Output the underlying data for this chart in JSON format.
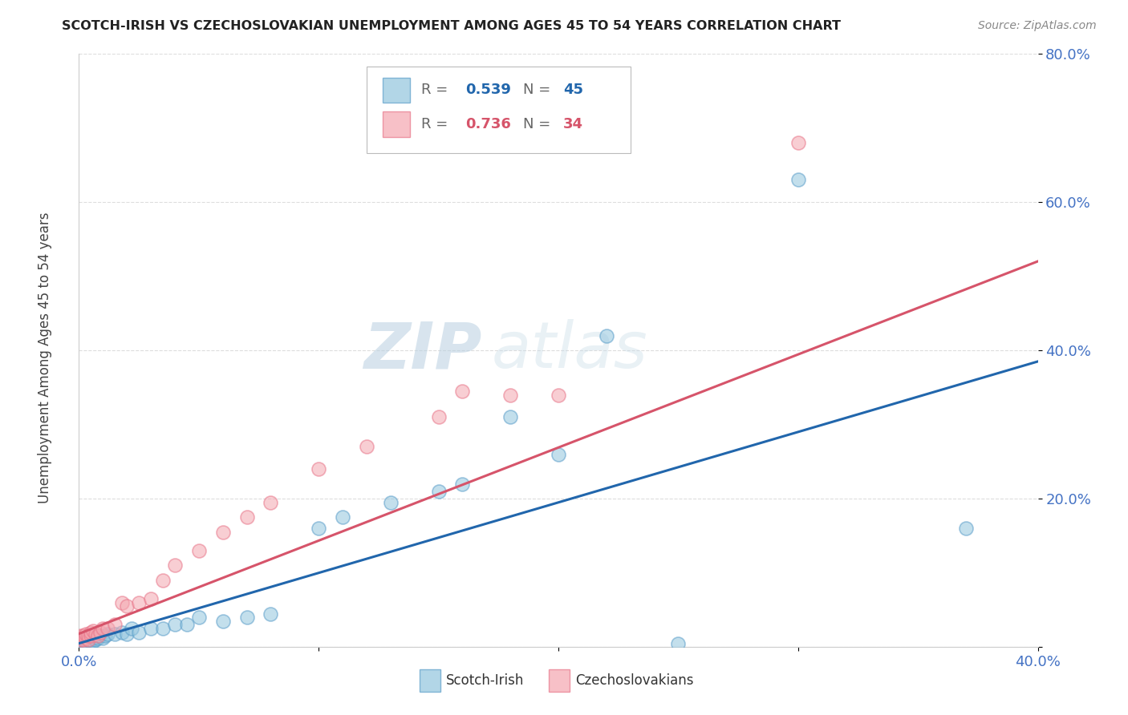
{
  "title": "SCOTCH-IRISH VS CZECHOSLOVAKIAN UNEMPLOYMENT AMONG AGES 45 TO 54 YEARS CORRELATION CHART",
  "source": "Source: ZipAtlas.com",
  "xlim": [
    0.0,
    0.4
  ],
  "ylim": [
    0.0,
    0.8
  ],
  "x_tick_vals": [
    0.0,
    0.1,
    0.2,
    0.3,
    0.4
  ],
  "x_tick_labels": [
    "0.0%",
    "",
    "",
    "",
    "40.0%"
  ],
  "y_tick_vals": [
    0.0,
    0.2,
    0.4,
    0.6,
    0.8
  ],
  "y_tick_labels": [
    "",
    "20.0%",
    "40.0%",
    "60.0%",
    "80.0%"
  ],
  "ylabel": "Unemployment Among Ages 45 to 54 years",
  "scotch_irish_color": "#92c5de",
  "czech_color": "#f4a6b0",
  "scotch_irish_edge_color": "#5b9ec9",
  "czech_edge_color": "#e8768a",
  "scotch_irish_line_color": "#2166ac",
  "czech_line_color": "#d6546a",
  "scotch_irish_R": 0.539,
  "scotch_irish_N": 45,
  "czech_R": 0.736,
  "czech_N": 34,
  "legend_label1": "Scotch-Irish",
  "legend_label2": "Czechoslovakians",
  "watermark_zip": "ZIP",
  "watermark_atlas": "atlas",
  "background_color": "#ffffff",
  "grid_color": "#dddddd",
  "tick_color": "#4472c4",
  "title_color": "#222222",
  "source_color": "#888888",
  "ylabel_color": "#444444",
  "scotch_irish_x": [
    0.001,
    0.001,
    0.001,
    0.002,
    0.002,
    0.002,
    0.003,
    0.003,
    0.004,
    0.004,
    0.005,
    0.005,
    0.005,
    0.006,
    0.006,
    0.007,
    0.008,
    0.009,
    0.01,
    0.011,
    0.012,
    0.015,
    0.018,
    0.02,
    0.022,
    0.025,
    0.03,
    0.035,
    0.04,
    0.045,
    0.05,
    0.06,
    0.07,
    0.08,
    0.1,
    0.11,
    0.13,
    0.15,
    0.16,
    0.18,
    0.2,
    0.22,
    0.25,
    0.3,
    0.37
  ],
  "scotch_irish_y": [
    0.005,
    0.008,
    0.01,
    0.005,
    0.008,
    0.012,
    0.006,
    0.01,
    0.005,
    0.01,
    0.008,
    0.01,
    0.015,
    0.008,
    0.012,
    0.01,
    0.012,
    0.015,
    0.012,
    0.015,
    0.018,
    0.018,
    0.02,
    0.018,
    0.025,
    0.02,
    0.025,
    0.025,
    0.03,
    0.03,
    0.04,
    0.035,
    0.04,
    0.045,
    0.16,
    0.175,
    0.195,
    0.21,
    0.22,
    0.31,
    0.26,
    0.42,
    0.005,
    0.63,
    0.16
  ],
  "czech_x": [
    0.001,
    0.001,
    0.002,
    0.002,
    0.003,
    0.003,
    0.004,
    0.004,
    0.005,
    0.005,
    0.006,
    0.007,
    0.008,
    0.009,
    0.01,
    0.012,
    0.015,
    0.018,
    0.02,
    0.025,
    0.03,
    0.035,
    0.04,
    0.05,
    0.06,
    0.07,
    0.08,
    0.1,
    0.12,
    0.15,
    0.16,
    0.18,
    0.2,
    0.3
  ],
  "czech_y": [
    0.01,
    0.015,
    0.01,
    0.015,
    0.012,
    0.018,
    0.01,
    0.015,
    0.015,
    0.02,
    0.022,
    0.018,
    0.015,
    0.02,
    0.025,
    0.025,
    0.03,
    0.06,
    0.055,
    0.06,
    0.065,
    0.09,
    0.11,
    0.13,
    0.155,
    0.175,
    0.195,
    0.24,
    0.27,
    0.31,
    0.345,
    0.34,
    0.34,
    0.68
  ],
  "si_line_x0": 0.0,
  "si_line_y0": 0.005,
  "si_line_x1": 0.4,
  "si_line_y1": 0.385,
  "cz_line_x0": 0.0,
  "cz_line_y0": 0.018,
  "cz_line_x1": 0.4,
  "cz_line_y1": 0.52
}
